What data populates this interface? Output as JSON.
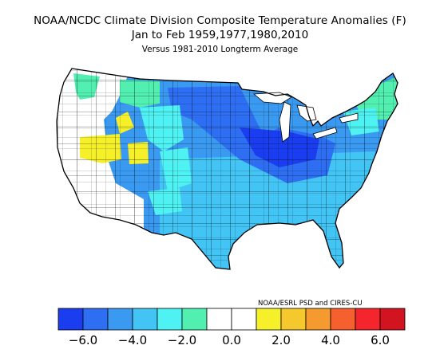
{
  "title": {
    "line1": "NOAA/NCDC Climate Division Composite Temperature Anomalies (F)",
    "line2": "Jan to Feb   1959,1977,1980,2010",
    "line3": "Versus 1981-2010 Longterm Average"
  },
  "credit": "NOAA/ESRL PSD and CIRES-CU",
  "legend": {
    "colors": [
      "#1a3df0",
      "#2e6ef2",
      "#3a9af2",
      "#42c4f5",
      "#4ff2f2",
      "#52f0b0",
      "#ffffff",
      "#ffffff",
      "#f5f02a",
      "#f5c92e",
      "#f59a2e",
      "#f5602e",
      "#f5252e",
      "#d21420"
    ],
    "tick_labels": [
      "−6.0",
      "−4.0",
      "−2.0",
      "0.0",
      "2.0",
      "4.0",
      "6.0"
    ],
    "tick_values": [
      -6,
      -4,
      -2,
      0,
      2,
      4,
      6
    ],
    "range": [
      -7,
      7
    ]
  },
  "map": {
    "region": "contiguous-united-states",
    "layer": "climate-division-temperature-anomaly"
  }
}
